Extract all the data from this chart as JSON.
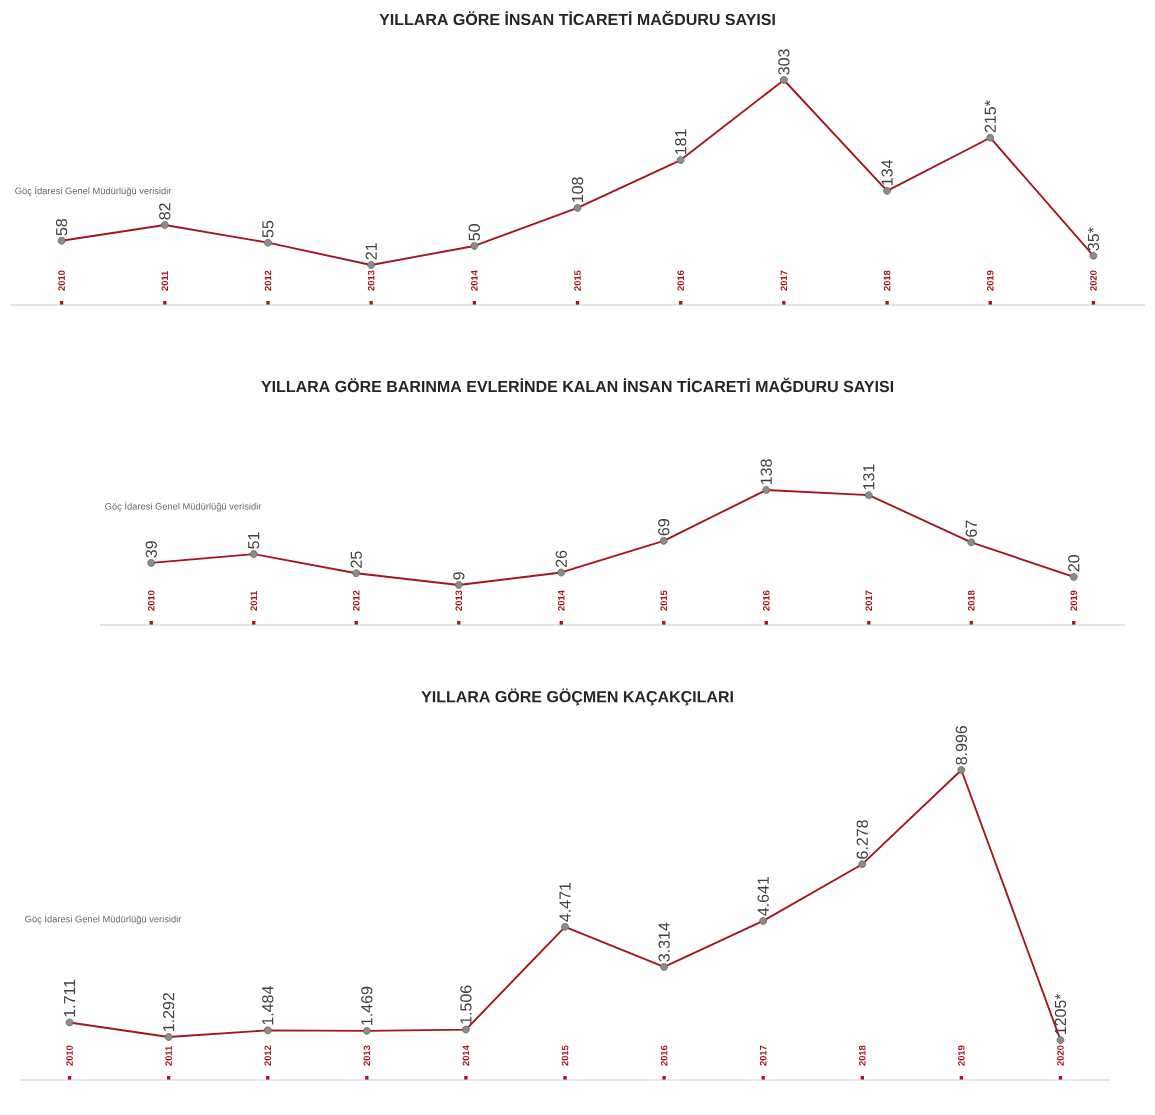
{
  "chart_data": [
    {
      "type": "line",
      "title": "YILLARA GÖRE İNSAN TİCARETİ MAĞDURU SAYISI",
      "categories": [
        "2010",
        "2011",
        "2012",
        "2013",
        "2014",
        "2015",
        "2016",
        "2017",
        "2018",
        "2019",
        "2020"
      ],
      "color": "#a3161c",
      "marker": "circle",
      "tick_labels": "x",
      "annotations": [
        "Göç İdaresi Genel Müdürlüğü verisidir"
      ],
      "values": [
        58,
        82,
        55,
        21,
        50,
        108,
        181,
        303,
        134,
        215,
        35
      ],
      "value_labels": [
        "58",
        "82",
        "55",
        "21",
        "50",
        "108",
        "181",
        "303",
        "134",
        "215*",
        "35*"
      ]
    },
    {
      "type": "line",
      "title": "YILLARA GÖRE BARINMA EVLERİNDE KALAN İNSAN TİCARETİ MAĞDURU SAYISI",
      "categories": [
        "2010",
        "2011",
        "2012",
        "2013",
        "2014",
        "2015",
        "2016",
        "2017",
        "2018",
        "2019"
      ],
      "color": "#a3161c",
      "marker": "circle",
      "tick_labels": "x",
      "annotations": [
        "Göç İdaresi Genel Müdürlüğü verisidir"
      ],
      "values": [
        39,
        51,
        25,
        9,
        26,
        69,
        138,
        131,
        67,
        20
      ],
      "value_labels": [
        "39",
        "51",
        "25",
        "9",
        "26",
        "69",
        "138",
        "131",
        "67",
        "20"
      ]
    },
    {
      "type": "line",
      "title": "YILLARA GÖRE GÖÇMEN KAÇAKÇILARI",
      "categories": [
        "2010",
        "2011",
        "2012",
        "2013",
        "2014",
        "2015",
        "2016",
        "2017",
        "2018",
        "2019",
        "2020"
      ],
      "color": "#a3161c",
      "marker": "circle",
      "tick_labels": "x",
      "annotations": [
        "Göç İdaresi Genel Müdürlüğü verisidir"
      ],
      "values": [
        1711,
        1292,
        1484,
        1469,
        1506,
        4471,
        3314,
        4641,
        6278,
        8996,
        1205
      ],
      "value_labels": [
        "1.711",
        "1.292",
        "1.484",
        "1.469",
        "1.506",
        "4.471",
        "3.314",
        "4.641",
        "6.278",
        "8.996",
        "1205*"
      ]
    }
  ]
}
